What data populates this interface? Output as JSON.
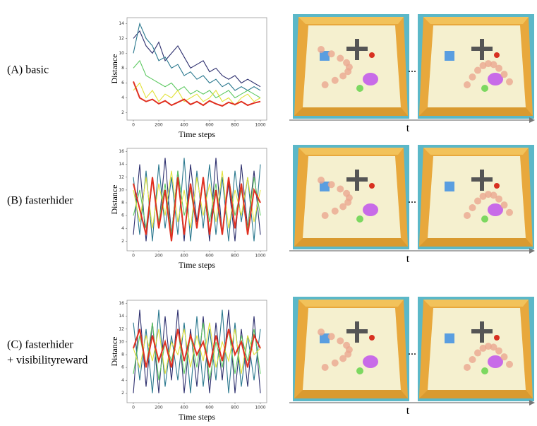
{
  "row_labels": [
    [
      "(A) basic"
    ],
    [
      "(B) fasterhider"
    ],
    [
      "(C) fasterhider",
      "+ visibilityreward"
    ]
  ],
  "time_labels": [
    "t",
    "t",
    "t"
  ],
  "ellipses": [
    "...",
    "...",
    "..."
  ],
  "chart_data": [
    {
      "type": "line",
      "xlabel": "Time steps",
      "ylabel": "Distance",
      "x": [
        0,
        50,
        100,
        150,
        200,
        250,
        300,
        350,
        400,
        450,
        500,
        550,
        600,
        650,
        700,
        750,
        800,
        850,
        900,
        950,
        1000
      ],
      "xlim": [
        -50,
        1050
      ],
      "xticks": [
        0,
        200,
        400,
        600,
        800,
        1000
      ],
      "ylim": [
        1,
        14.8
      ],
      "yticks": [
        2,
        4,
        6,
        8,
        10,
        12,
        14
      ],
      "series": [
        {
          "color": "#2d2f6e",
          "values": [
            12,
            13,
            11,
            10,
            11.5,
            9,
            10,
            11,
            9.5,
            8,
            8.5,
            9,
            7.5,
            8,
            7,
            6.5,
            7,
            6,
            6.5,
            6,
            5.5
          ]
        },
        {
          "color": "#2a788e",
          "values": [
            10,
            14,
            12,
            11,
            9,
            9.5,
            8,
            8.5,
            7,
            7.5,
            6.5,
            7,
            6,
            6.5,
            5.5,
            6,
            5,
            5.5,
            5,
            5.5,
            5
          ]
        },
        {
          "color": "#5ec962",
          "values": [
            8,
            9,
            7,
            6.5,
            6,
            5.5,
            6,
            5,
            5.5,
            4.5,
            5,
            4.5,
            5,
            4,
            4.5,
            5,
            4,
            4.5,
            5,
            4.5,
            4
          ]
        },
        {
          "color": "#e2e23a",
          "values": [
            5,
            6,
            4,
            5,
            3.5,
            4.5,
            4,
            5,
            3.5,
            4,
            4.5,
            3.5,
            4,
            5,
            3.5,
            4,
            3,
            4,
            4.5,
            3.5,
            4
          ]
        },
        {
          "color": "#e03020",
          "values": [
            6.2,
            4,
            3.5,
            3.8,
            3.2,
            3.6,
            3,
            3.4,
            3.8,
            3.1,
            3.5,
            3,
            3.6,
            3.2,
            2.9,
            3.4,
            3.1,
            3.5,
            3,
            3.3,
            3.5
          ]
        }
      ]
    },
    {
      "type": "line",
      "xlabel": "Time steps",
      "ylabel": "Distance",
      "x": [
        0,
        50,
        100,
        150,
        200,
        250,
        300,
        350,
        400,
        450,
        500,
        550,
        600,
        650,
        700,
        750,
        800,
        850,
        900,
        950,
        1000
      ],
      "xlim": [
        -50,
        1050
      ],
      "xticks": [
        0,
        200,
        400,
        600,
        800,
        1000
      ],
      "ylim": [
        0.5,
        16.5
      ],
      "yticks": [
        2,
        4,
        6,
        8,
        10,
        12,
        14,
        16
      ],
      "series": [
        {
          "color": "#2d2f6e",
          "values": [
            3,
            14,
            2,
            12,
            4,
            15,
            3,
            13,
            2,
            14,
            5,
            12,
            2,
            15,
            3,
            11,
            2,
            14,
            4,
            13,
            3
          ]
        },
        {
          "color": "#2a788e",
          "values": [
            12,
            3,
            13,
            2,
            14,
            4,
            12,
            3,
            15,
            2,
            13,
            4,
            14,
            3,
            12,
            2,
            13,
            5,
            12,
            2,
            14
          ]
        },
        {
          "color": "#5ec962",
          "values": [
            6,
            10,
            4,
            12,
            5,
            11,
            3,
            13,
            6,
            10,
            4,
            12,
            5,
            11,
            3,
            12,
            6,
            10,
            4,
            12,
            6
          ]
        },
        {
          "color": "#e2e23a",
          "values": [
            10,
            5,
            12,
            4,
            11,
            6,
            13,
            5,
            10,
            4,
            12,
            6,
            11,
            5,
            13,
            4,
            10,
            6,
            12,
            5,
            10
          ]
        },
        {
          "color": "#e03020",
          "values": [
            11,
            7,
            3,
            12,
            4,
            10,
            2,
            12,
            3,
            11,
            4,
            12,
            3,
            10,
            3,
            12,
            4,
            11,
            3,
            10,
            8
          ]
        }
      ]
    },
    {
      "type": "line",
      "xlabel": "Time steps",
      "ylabel": "Distance",
      "x": [
        0,
        50,
        100,
        150,
        200,
        250,
        300,
        350,
        400,
        450,
        500,
        550,
        600,
        650,
        700,
        750,
        800,
        850,
        900,
        950,
        1000
      ],
      "xlim": [
        -50,
        1050
      ],
      "xticks": [
        0,
        200,
        400,
        600,
        800,
        1000
      ],
      "ylim": [
        0.5,
        16.5
      ],
      "yticks": [
        2,
        4,
        6,
        8,
        10,
        12,
        14,
        16
      ],
      "series": [
        {
          "color": "#2d2f6e",
          "values": [
            2,
            15,
            3,
            13,
            2,
            14,
            4,
            15,
            2,
            12,
            3,
            14,
            2,
            13,
            4,
            15,
            2,
            12,
            3,
            14,
            2
          ]
        },
        {
          "color": "#2a788e",
          "values": [
            13,
            4,
            12,
            2,
            15,
            3,
            11,
            4,
            13,
            2,
            14,
            3,
            12,
            4,
            15,
            2,
            13,
            3,
            11,
            4,
            12
          ]
        },
        {
          "color": "#5ec962",
          "values": [
            5,
            11,
            6,
            13,
            4,
            10,
            7,
            12,
            5,
            11,
            6,
            13,
            4,
            10,
            6,
            12,
            5,
            11,
            7,
            12,
            5
          ]
        },
        {
          "color": "#e2e23a",
          "values": [
            9,
            6,
            11,
            7,
            12,
            5,
            10,
            8,
            12,
            6,
            11,
            7,
            13,
            6,
            10,
            7,
            12,
            5,
            11,
            8,
            9
          ]
        },
        {
          "color": "#e03020",
          "values": [
            9,
            12,
            6,
            11,
            7,
            10,
            6,
            12,
            7,
            11,
            8,
            10,
            6,
            11,
            7,
            12,
            8,
            10,
            6,
            11,
            9
          ]
        }
      ]
    }
  ]
}
